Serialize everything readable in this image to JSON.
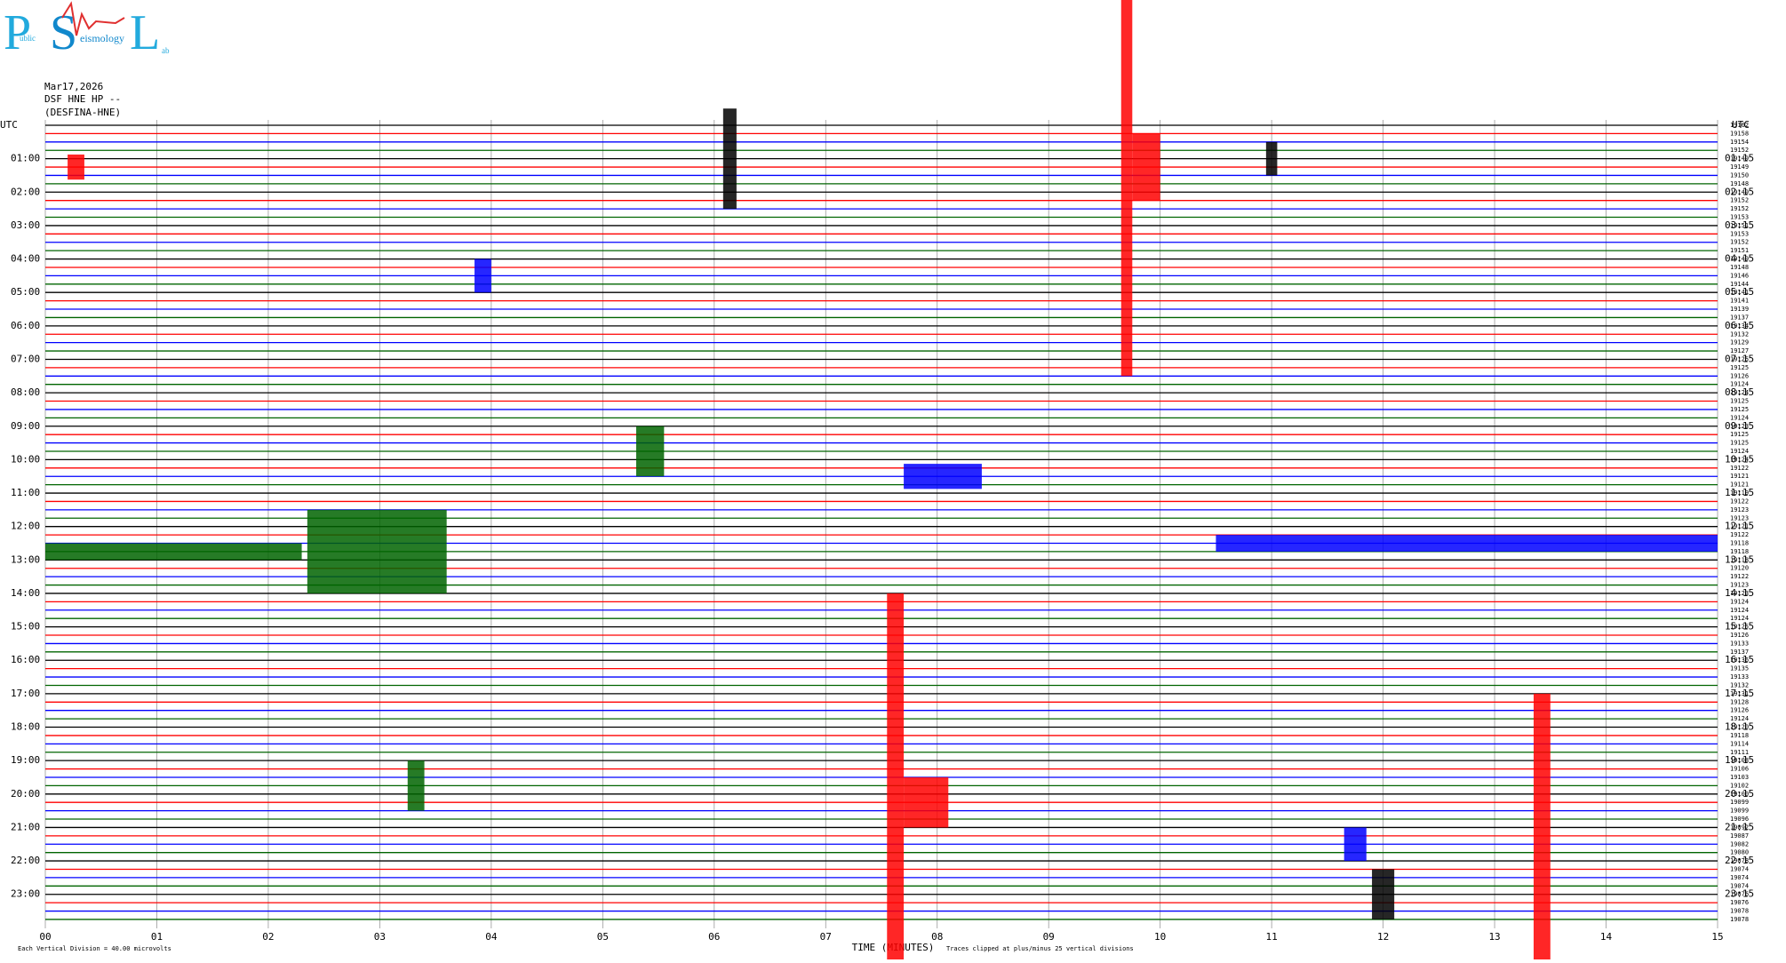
{
  "logo": {
    "big": [
      "P",
      "S",
      "L"
    ],
    "small": [
      "ublic",
      "eismology",
      "ab"
    ]
  },
  "header": {
    "date": "Mar17,2026",
    "station": "DSF HNE HP --",
    "site": "(DESFINA-HNE)"
  },
  "footer": {
    "division": "Each Vertical Division =   40.00 microvolts",
    "clip": "Traces clipped at plus/minus 25 vertical divisions"
  },
  "chart_data": {
    "type": "helicorder",
    "x_label": "TIME (MINUTES)",
    "xlim": [
      0,
      15
    ],
    "xticks": [
      {
        "value": 0,
        "label": "00"
      },
      {
        "value": 1,
        "label": "01"
      },
      {
        "value": 2,
        "label": "02"
      },
      {
        "value": 3,
        "label": "03"
      },
      {
        "value": 4,
        "label": "04"
      },
      {
        "value": 5,
        "label": "05"
      },
      {
        "value": 6,
        "label": "06"
      },
      {
        "value": 7,
        "label": "07"
      },
      {
        "value": 8,
        "label": "08"
      },
      {
        "value": 9,
        "label": "09"
      },
      {
        "value": 10,
        "label": "10"
      },
      {
        "value": 11,
        "label": "11"
      },
      {
        "value": 12,
        "label": "12"
      },
      {
        "value": 13,
        "label": "13"
      },
      {
        "value": 14,
        "label": "14"
      },
      {
        "value": 15,
        "label": "15"
      }
    ],
    "grid": true,
    "trace_colors": [
      "#000000",
      "#ff0000",
      "#0000ff",
      "#006400"
    ],
    "left_labels": [
      "UTC",
      "01:00",
      "02:00",
      "03:00",
      "04:00",
      "05:00",
      "06:00",
      "07:00",
      "08:00",
      "09:00",
      "10:00",
      "11:00",
      "12:00",
      "13:00",
      "14:00",
      "15:00",
      "16:00",
      "17:00",
      "18:00",
      "19:00",
      "20:00",
      "21:00",
      "22:00",
      "23:00"
    ],
    "right_labels": [
      "UTC",
      "01:15",
      "02:15",
      "03:15",
      "04:15",
      "05:15",
      "06:15",
      "07:15",
      "08:15",
      "09:15",
      "10:15",
      "11:15",
      "12:15",
      "13:15",
      "14:15",
      "15:15",
      "16:15",
      "17:15",
      "18:15",
      "19:15",
      "20:15",
      "21:15",
      "22:15",
      "23:15"
    ],
    "trace_values": [
      19162,
      19158,
      19154,
      19152,
      19149,
      19149,
      19150,
      19148,
      19149,
      19152,
      19152,
      19153,
      19151,
      19153,
      19152,
      19151,
      19149,
      19148,
      19146,
      19144,
      19141,
      19141,
      19139,
      19137,
      19134,
      19132,
      19129,
      19127,
      19125,
      19125,
      19126,
      19124,
      19124,
      19125,
      19125,
      19124,
      19123,
      19125,
      19125,
      19124,
      19124,
      19122,
      19121,
      19121,
      19119,
      19122,
      19123,
      19123,
      19121,
      19122,
      19118,
      19118,
      19118,
      19120,
      19122,
      19123,
      19123,
      19124,
      19124,
      19124,
      19125,
      19126,
      19133,
      19137,
      19136,
      19135,
      19133,
      19132,
      19131,
      19128,
      19126,
      19124,
      19120,
      19118,
      19114,
      19111,
      19108,
      19106,
      19103,
      19102,
      19100,
      19099,
      19099,
      19096,
      19092,
      19087,
      19082,
      19080,
      19078,
      19074,
      19074,
      19074,
      19076,
      19076,
      19078,
      19078
    ],
    "events": [
      {
        "row": 5,
        "start": 9.65,
        "end": 9.75,
        "amplitude": 25
      },
      {
        "row": 5,
        "start": 9.75,
        "end": 10.0,
        "amplitude": 4
      },
      {
        "row": 4,
        "start": 6.08,
        "end": 6.2,
        "amplitude": 6
      },
      {
        "row": 4,
        "start": 10.95,
        "end": 11.05,
        "amplitude": 2
      },
      {
        "row": 5,
        "start": 0.2,
        "end": 0.35,
        "amplitude": 1.5
      },
      {
        "row": 18,
        "start": 3.85,
        "end": 4.0,
        "amplitude": 2
      },
      {
        "row": 39,
        "start": 5.3,
        "end": 5.55,
        "amplitude": 3
      },
      {
        "row": 42,
        "start": 7.7,
        "end": 8.4,
        "amplitude": 1.5
      },
      {
        "row": 51,
        "start": 0.0,
        "end": 2.3,
        "amplitude": 1
      },
      {
        "row": 51,
        "start": 2.35,
        "end": 3.6,
        "amplitude": 5
      },
      {
        "row": 50,
        "start": 10.5,
        "end": 15.0,
        "amplitude": 1
      },
      {
        "row": 79,
        "start": 3.25,
        "end": 3.4,
        "amplitude": 3
      },
      {
        "row": 81,
        "start": 7.55,
        "end": 7.7,
        "amplitude": 25
      },
      {
        "row": 81,
        "start": 7.7,
        "end": 8.1,
        "amplitude": 3
      },
      {
        "row": 85,
        "start": 13.35,
        "end": 13.5,
        "amplitude": 17
      },
      {
        "row": 86,
        "start": 11.65,
        "end": 11.85,
        "amplitude": 2
      },
      {
        "row": 92,
        "start": 11.9,
        "end": 12.1,
        "amplitude": 3
      }
    ]
  }
}
